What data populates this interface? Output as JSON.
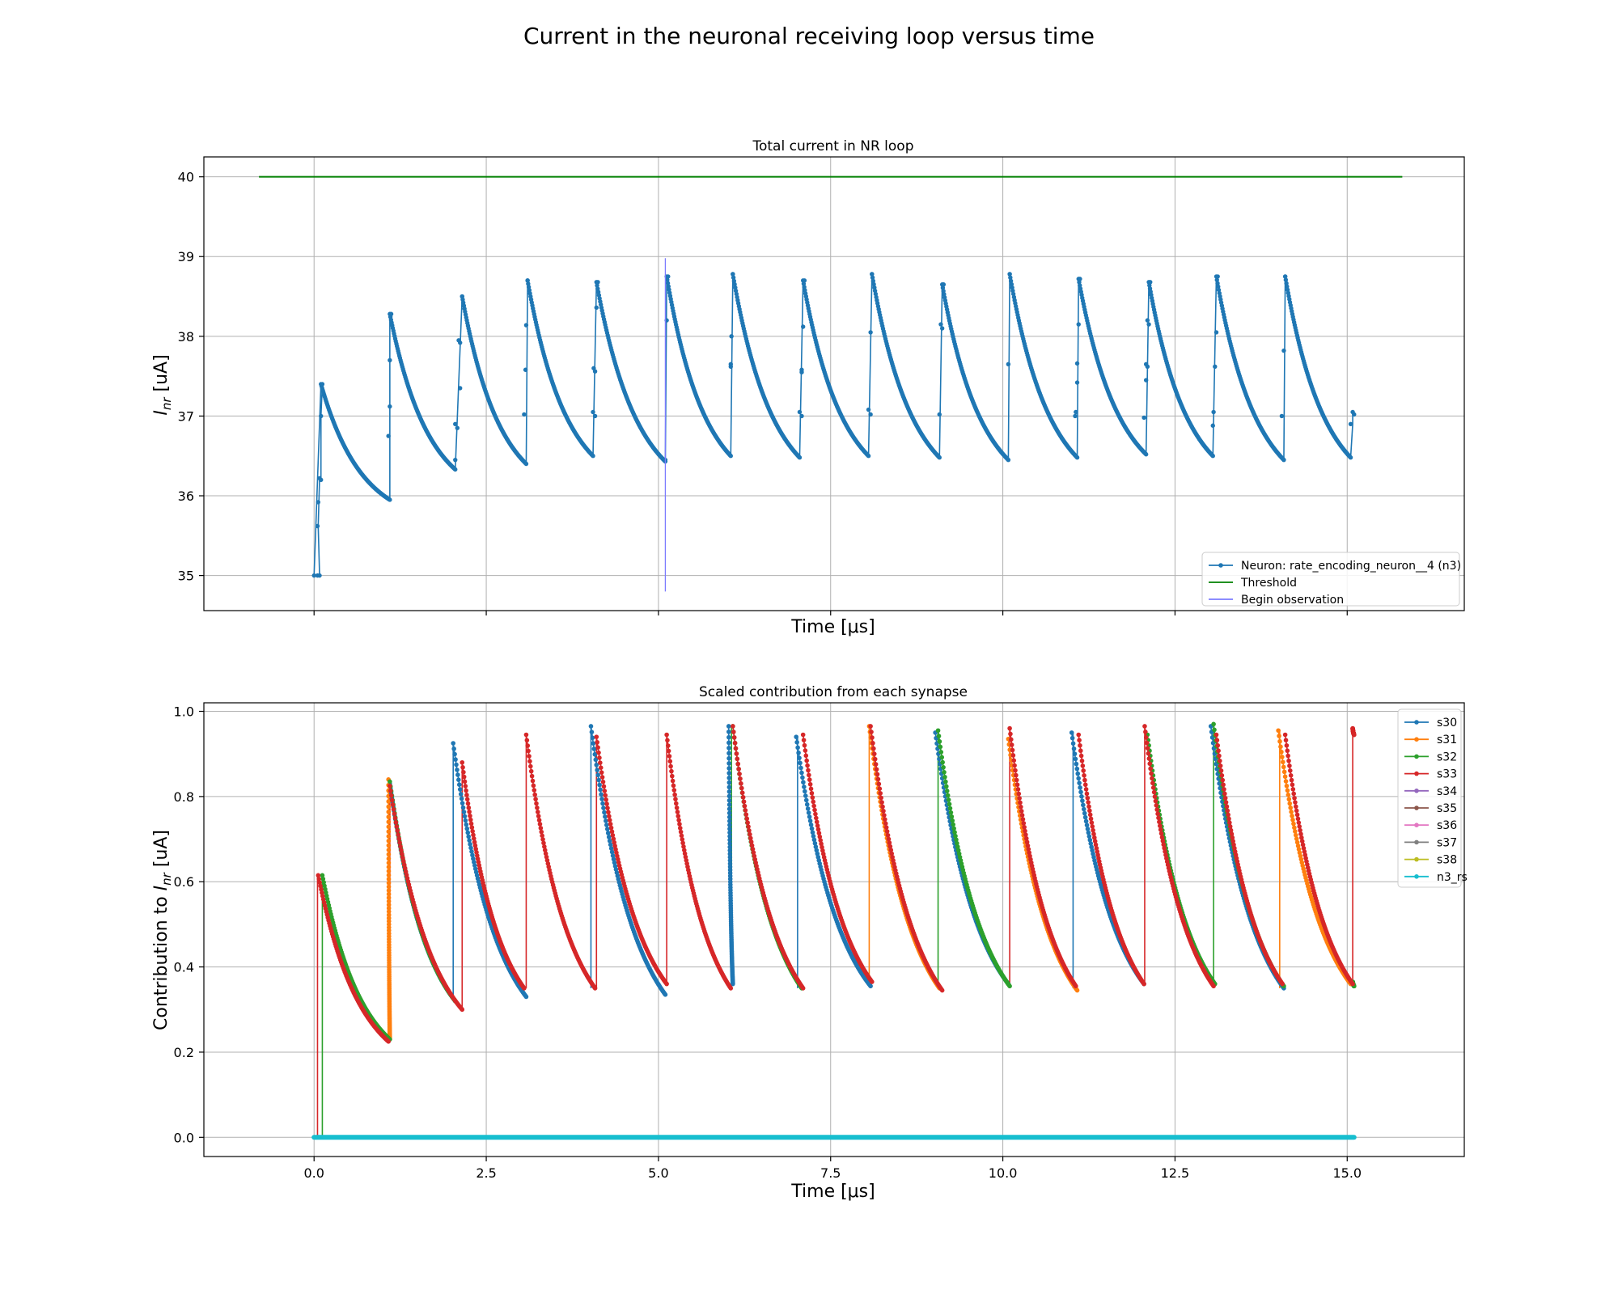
{
  "figure": {
    "title": "Current in the neuronal receiving loop versus time"
  },
  "chart_data": [
    {
      "type": "line",
      "title": "Total current in NR loop",
      "xlabel": "Time [μs]",
      "ylabel": "I_nr [uA]",
      "xlim": [
        -1.6,
        16.7
      ],
      "ylim": [
        34.56,
        40.25
      ],
      "xticks": [
        0.0,
        2.5,
        5.0,
        7.5,
        10.0,
        12.5,
        15.0
      ],
      "yticks": [
        35,
        36,
        37,
        38,
        39,
        40
      ],
      "grid": true,
      "legend_position": "lower-right",
      "series": [
        {
          "name": "Neuron: rate_encoding_neuron__4 (n3)",
          "color": "#1f77b4",
          "marker": "dot",
          "segments": [
            {
              "x0": 0.1,
              "y_start": 37.4,
              "x1": 1.1,
              "y_end": 35.95
            },
            {
              "x0": 1.1,
              "y_start": 38.28,
              "x1": 2.05,
              "y_end": 36.33
            },
            {
              "x0": 2.15,
              "y_start": 38.5,
              "x1": 3.08,
              "y_end": 36.4
            },
            {
              "x0": 3.1,
              "y_start": 38.7,
              "x1": 4.05,
              "y_end": 36.5
            },
            {
              "x0": 4.1,
              "y_start": 38.68,
              "x1": 5.1,
              "y_end": 36.43
            },
            {
              "x0": 5.12,
              "y_start": 38.75,
              "x1": 6.05,
              "y_end": 36.5
            },
            {
              "x0": 6.08,
              "y_start": 38.78,
              "x1": 7.05,
              "y_end": 36.48
            },
            {
              "x0": 7.1,
              "y_start": 38.7,
              "x1": 8.05,
              "y_end": 36.5
            },
            {
              "x0": 8.1,
              "y_start": 38.78,
              "x1": 9.08,
              "y_end": 36.48
            },
            {
              "x0": 9.12,
              "y_start": 38.65,
              "x1": 10.08,
              "y_end": 36.45
            },
            {
              "x0": 10.1,
              "y_start": 38.78,
              "x1": 11.08,
              "y_end": 36.48
            },
            {
              "x0": 11.1,
              "y_start": 38.72,
              "x1": 12.08,
              "y_end": 36.52
            },
            {
              "x0": 12.12,
              "y_start": 38.68,
              "x1": 13.05,
              "y_end": 36.5
            },
            {
              "x0": 13.1,
              "y_start": 38.75,
              "x1": 14.08,
              "y_end": 36.45
            },
            {
              "x0": 14.1,
              "y_start": 38.75,
              "x1": 15.05,
              "y_end": 36.48
            }
          ],
          "rise_points": [
            [
              0.0,
              35.0
            ],
            [
              0.05,
              35.0
            ],
            [
              0.08,
              35.0
            ],
            [
              0.05,
              35.62
            ],
            [
              0.06,
              35.92
            ],
            [
              0.08,
              36.22
            ],
            [
              0.1,
              36.2
            ],
            [
              0.1,
              37.0
            ],
            [
              0.12,
              37.4
            ],
            [
              1.08,
              36.75
            ],
            [
              1.1,
              37.12
            ],
            [
              1.1,
              37.7
            ],
            [
              1.12,
              38.28
            ],
            [
              2.05,
              36.45
            ],
            [
              2.05,
              36.9
            ],
            [
              2.08,
              36.85
            ],
            [
              2.1,
              37.95
            ],
            [
              2.12,
              37.35
            ],
            [
              2.12,
              37.92
            ],
            [
              2.15,
              38.5
            ],
            [
              3.05,
              37.02
            ],
            [
              3.07,
              37.58
            ],
            [
              3.08,
              38.14
            ],
            [
              3.1,
              38.7
            ],
            [
              4.05,
              37.05
            ],
            [
              4.08,
              37.0
            ],
            [
              4.06,
              37.6
            ],
            [
              4.08,
              37.56
            ],
            [
              4.1,
              38.36
            ],
            [
              4.12,
              38.68
            ],
            [
              5.1,
              36.45
            ],
            [
              5.12,
              38.2
            ],
            [
              5.14,
              38.75
            ],
            [
              6.05,
              37.65
            ],
            [
              6.05,
              37.62
            ],
            [
              6.06,
              38.0
            ],
            [
              6.08,
              38.78
            ],
            [
              7.05,
              37.05
            ],
            [
              7.08,
              37.0
            ],
            [
              7.08,
              37.58
            ],
            [
              7.08,
              37.55
            ],
            [
              7.1,
              38.12
            ],
            [
              7.12,
              38.7
            ],
            [
              8.05,
              37.08
            ],
            [
              8.08,
              37.02
            ],
            [
              8.08,
              38.05
            ],
            [
              8.1,
              38.78
            ],
            [
              9.08,
              37.02
            ],
            [
              9.1,
              38.15
            ],
            [
              9.12,
              38.1
            ],
            [
              9.14,
              38.65
            ],
            [
              10.08,
              37.65
            ],
            [
              10.1,
              38.78
            ],
            [
              11.05,
              37.0
            ],
            [
              11.06,
              37.05
            ],
            [
              11.08,
              37.42
            ],
            [
              11.08,
              37.66
            ],
            [
              11.1,
              38.15
            ],
            [
              11.12,
              38.72
            ],
            [
              12.05,
              36.98
            ],
            [
              12.08,
              37.45
            ],
            [
              12.08,
              37.65
            ],
            [
              12.1,
              37.62
            ],
            [
              12.1,
              38.2
            ],
            [
              12.12,
              38.15
            ],
            [
              12.14,
              38.68
            ],
            [
              13.05,
              36.88
            ],
            [
              13.06,
              37.05
            ],
            [
              13.08,
              37.62
            ],
            [
              13.1,
              38.05
            ],
            [
              13.12,
              38.75
            ],
            [
              14.05,
              37.0
            ],
            [
              14.08,
              37.82
            ],
            [
              14.1,
              38.75
            ],
            [
              15.05,
              36.9
            ],
            [
              15.08,
              37.05
            ],
            [
              15.1,
              37.02
            ]
          ]
        },
        {
          "name": "Threshold",
          "color": "#008000",
          "x": [
            -0.8,
            15.8
          ],
          "y": [
            40.0,
            40.0
          ]
        },
        {
          "name": "Begin observation",
          "color": "#7b7bff",
          "x": [
            5.1,
            5.1
          ],
          "y": [
            34.8,
            38.98
          ]
        }
      ]
    },
    {
      "type": "line",
      "title": "Scaled contribution from each synapse",
      "xlabel": "Time [μs]",
      "ylabel": "Contribution to I_nr [uA]",
      "xlim": [
        -1.6,
        16.7
      ],
      "ylim": [
        -0.045,
        1.02
      ],
      "xticks": [
        0.0,
        2.5,
        5.0,
        7.5,
        10.0,
        12.5,
        15.0
      ],
      "xtick_labels": [
        "0.0",
        "2.5",
        "5.0",
        "7.5",
        "10.0",
        "12.5",
        "15.0"
      ],
      "yticks": [
        0.0,
        0.2,
        0.4,
        0.6,
        0.8,
        1.0
      ],
      "ytick_labels": [
        "0.0",
        "0.2",
        "0.4",
        "0.6",
        "0.8",
        "1.0"
      ],
      "grid": true,
      "legend_position": "upper-right",
      "series": [
        {
          "name": "s30",
          "color": "#1f77b4",
          "segments": [
            [
              2.02,
              0.925,
              3.08,
              0.33
            ],
            [
              4.02,
              0.965,
              5.1,
              0.335
            ],
            [
              6.02,
              0.965,
              6.08,
              0.36
            ],
            [
              7.0,
              0.94,
              8.08,
              0.355
            ],
            [
              9.02,
              0.95,
              10.08,
              0.36
            ],
            [
              11.0,
              0.95,
              12.05,
              0.36
            ],
            [
              13.02,
              0.965,
              14.08,
              0.35
            ],
            [
              1.1,
              0.83,
              2.05,
              0.32
            ]
          ]
        },
        {
          "name": "s31",
          "color": "#ff7f0e",
          "segments": [
            [
              1.08,
              0.84,
              1.1,
              0.23
            ],
            [
              8.06,
              0.965,
              9.08,
              0.35
            ],
            [
              10.08,
              0.935,
              11.08,
              0.345
            ],
            [
              14.0,
              0.955,
              15.05,
              0.36
            ]
          ]
        },
        {
          "name": "s32",
          "color": "#2ca02c",
          "segments": [
            [
              0.12,
              0.615,
              1.1,
              0.23
            ],
            [
              1.1,
              0.835,
              2.05,
              0.32
            ],
            [
              6.08,
              0.965,
              7.08,
              0.35
            ],
            [
              9.06,
              0.955,
              10.1,
              0.355
            ],
            [
              12.1,
              0.945,
              13.08,
              0.36
            ],
            [
              13.06,
              0.97,
              14.08,
              0.355
            ],
            [
              15.08,
              0.365,
              15.1,
              0.355
            ]
          ]
        },
        {
          "name": "s33",
          "color": "#d62728",
          "segments": [
            [
              0.06,
              0.615,
              1.08,
              0.225
            ],
            [
              1.1,
              0.825,
              2.15,
              0.3
            ],
            [
              2.15,
              0.88,
              3.05,
              0.35
            ],
            [
              3.08,
              0.945,
              4.08,
              0.35
            ],
            [
              4.1,
              0.94,
              5.12,
              0.36
            ],
            [
              5.12,
              0.945,
              6.05,
              0.35
            ],
            [
              6.08,
              0.965,
              7.1,
              0.35
            ],
            [
              7.1,
              0.945,
              8.1,
              0.365
            ],
            [
              8.08,
              0.965,
              9.12,
              0.345
            ],
            [
              10.1,
              0.96,
              11.06,
              0.355
            ],
            [
              11.1,
              0.945,
              12.05,
              0.36
            ],
            [
              12.06,
              0.965,
              13.06,
              0.355
            ],
            [
              13.1,
              0.945,
              14.06,
              0.36
            ],
            [
              14.1,
              0.945,
              15.08,
              0.36
            ],
            [
              15.08,
              0.96,
              15.1,
              0.945
            ]
          ]
        },
        {
          "name": "s34",
          "color": "#9467bd",
          "segments": []
        },
        {
          "name": "s35",
          "color": "#8c564b",
          "segments": []
        },
        {
          "name": "s36",
          "color": "#e377c2",
          "segments": []
        },
        {
          "name": "s37",
          "color": "#7f7f7f",
          "segments": []
        },
        {
          "name": "s38",
          "color": "#bcbd22",
          "segments": []
        },
        {
          "name": "n3_rs",
          "color": "#17becf",
          "segments": [
            [
              0.0,
              0.0,
              15.1,
              0.0
            ]
          ]
        }
      ],
      "spikes": [
        {
          "color": "#d62728",
          "x": 0.05,
          "from": 0.0,
          "to": 0.615
        },
        {
          "color": "#2ca02c",
          "x": 0.12,
          "from": 0.0,
          "to": 0.615
        },
        {
          "color": "#d62728",
          "x": 1.1,
          "from": 0.23,
          "to": 0.825
        },
        {
          "color": "#1f77b4",
          "x": 2.02,
          "from": 0.32,
          "to": 0.925
        },
        {
          "color": "#d62728",
          "x": 2.15,
          "from": 0.3,
          "to": 0.88
        },
        {
          "color": "#d62728",
          "x": 3.08,
          "from": 0.35,
          "to": 0.945
        },
        {
          "color": "#1f77b4",
          "x": 4.02,
          "from": 0.35,
          "to": 0.965
        },
        {
          "color": "#d62728",
          "x": 4.1,
          "from": 0.35,
          "to": 0.94
        },
        {
          "color": "#d62728",
          "x": 5.12,
          "from": 0.36,
          "to": 0.945
        },
        {
          "color": "#2ca02c",
          "x": 6.06,
          "from": 0.35,
          "to": 0.965
        },
        {
          "color": "#1f77b4",
          "x": 7.02,
          "from": 0.35,
          "to": 0.94
        },
        {
          "color": "#ff7f0e",
          "x": 8.06,
          "from": 0.36,
          "to": 0.965
        },
        {
          "color": "#2ca02c",
          "x": 9.06,
          "from": 0.35,
          "to": 0.955
        },
        {
          "color": "#d62728",
          "x": 10.1,
          "from": 0.35,
          "to": 0.96
        },
        {
          "color": "#1f77b4",
          "x": 11.02,
          "from": 0.35,
          "to": 0.95
        },
        {
          "color": "#d62728",
          "x": 12.06,
          "from": 0.36,
          "to": 0.965
        },
        {
          "color": "#2ca02c",
          "x": 13.06,
          "from": 0.36,
          "to": 0.97
        },
        {
          "color": "#ff7f0e",
          "x": 14.02,
          "from": 0.35,
          "to": 0.955
        },
        {
          "color": "#d62728",
          "x": 15.08,
          "from": 0.36,
          "to": 0.96
        }
      ]
    }
  ]
}
